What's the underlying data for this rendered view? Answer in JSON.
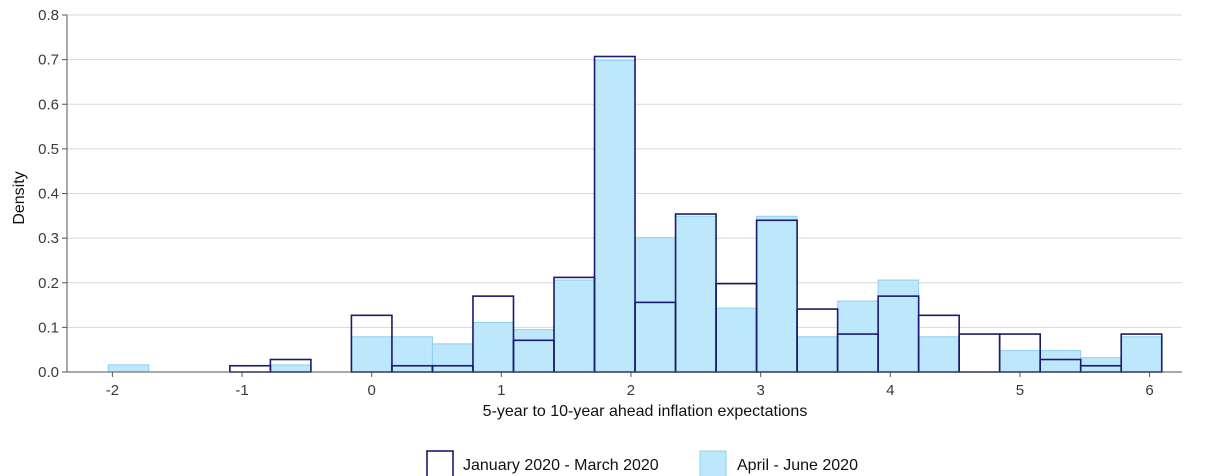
{
  "chart_data": {
    "type": "bar",
    "subtype": "overlaid-histogram",
    "xlabel": "5-year to 10-year ahead inflation expectations",
    "ylabel": "Density",
    "xlim": [
      -2.35,
      6.25
    ],
    "ylim": [
      0,
      0.8
    ],
    "x_ticks": [
      -2,
      -1,
      0,
      1,
      2,
      3,
      4,
      5,
      6
    ],
    "y_ticks": [
      0.0,
      0.1,
      0.2,
      0.3,
      0.4,
      0.5,
      0.6,
      0.7,
      0.8
    ],
    "x_tick_labels": [
      "-2",
      "-1",
      "0",
      "1",
      "2",
      "3",
      "4",
      "5",
      "6"
    ],
    "y_tick_labels": [
      "0.0",
      "0.1",
      "0.2",
      "0.3",
      "0.4",
      "0.5",
      "0.6",
      "0.7",
      "0.8"
    ],
    "bin_width": 0.3125,
    "bin_centers": [
      -1.875,
      -1.5625,
      -1.25,
      -0.9375,
      -0.625,
      -0.3125,
      0,
      0.3125,
      0.625,
      0.9375,
      1.25,
      1.5625,
      1.875,
      2.1875,
      2.5,
      2.8125,
      3.125,
      3.4375,
      3.75,
      4.0625,
      4.375,
      4.6875,
      5,
      5.3125,
      5.625,
      5.9375
    ],
    "grid": "horizontal",
    "legend_position": "bottom",
    "series": [
      {
        "name": "January 2020 - March 2020",
        "style": "outline",
        "color": "#1a1a6e",
        "values": [
          0,
          0,
          0,
          0.014,
          0.028,
          0,
          0.127,
          0.014,
          0.014,
          0.17,
          0.071,
          0.212,
          0.707,
          0.156,
          0.354,
          0.198,
          0.34,
          0.141,
          0.085,
          0.17,
          0.127,
          0.085,
          0.085,
          0.028,
          0.014,
          0.085
        ]
      },
      {
        "name": "April - June 2020",
        "style": "filled",
        "color": "#bde7fb",
        "edge_color": "#8fd0f0",
        "values": [
          0.016,
          0,
          0,
          0,
          0.016,
          0,
          0.079,
          0.079,
          0.063,
          0.111,
          0.095,
          0.206,
          0.698,
          0.301,
          0.349,
          0.143,
          0.349,
          0.079,
          0.159,
          0.206,
          0.079,
          0,
          0.048,
          0.048,
          0.032,
          0.079
        ]
      }
    ]
  },
  "colors": {
    "grid": "#d9d9d9",
    "axis": "#555555",
    "background": "#ffffff"
  }
}
